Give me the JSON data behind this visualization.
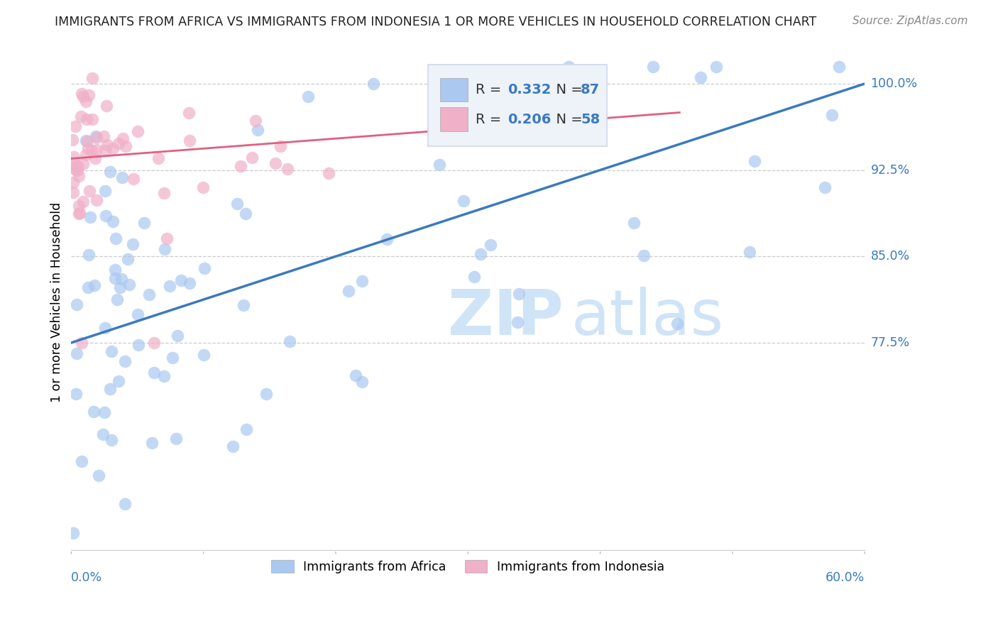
{
  "title": "IMMIGRANTS FROM AFRICA VS IMMIGRANTS FROM INDONESIA 1 OR MORE VEHICLES IN HOUSEHOLD CORRELATION CHART",
  "source": "Source: ZipAtlas.com",
  "ylabel_label": "1 or more Vehicles in Household",
  "legend_africa_R": "0.332",
  "legend_africa_N": "87",
  "legend_indonesia_R": "0.206",
  "legend_indonesia_N": "58",
  "africa_color": "#aac8f0",
  "indonesia_color": "#f0b0c8",
  "trendline_africa_color": "#3a7abf",
  "trendline_indonesia_color": "#e06080",
  "label_color": "#3a7abf",
  "watermark_color": "#d0e4f7",
  "xmin": 0.0,
  "xmax": 0.6,
  "ymin": 0.595,
  "ymax": 1.025,
  "ytick_vals": [
    0.775,
    0.85,
    0.925,
    1.0
  ],
  "ytick_labels": [
    "77.5%",
    "85.0%",
    "92.5%",
    "100.0%"
  ],
  "grid_color": "#cccccc",
  "background_color": "#ffffff",
  "africa_trendline_x": [
    0.0,
    0.6
  ],
  "africa_trendline_y": [
    0.775,
    1.0
  ],
  "indonesia_trendline_x": [
    0.0,
    0.46
  ],
  "indonesia_trendline_y": [
    0.935,
    0.975
  ]
}
